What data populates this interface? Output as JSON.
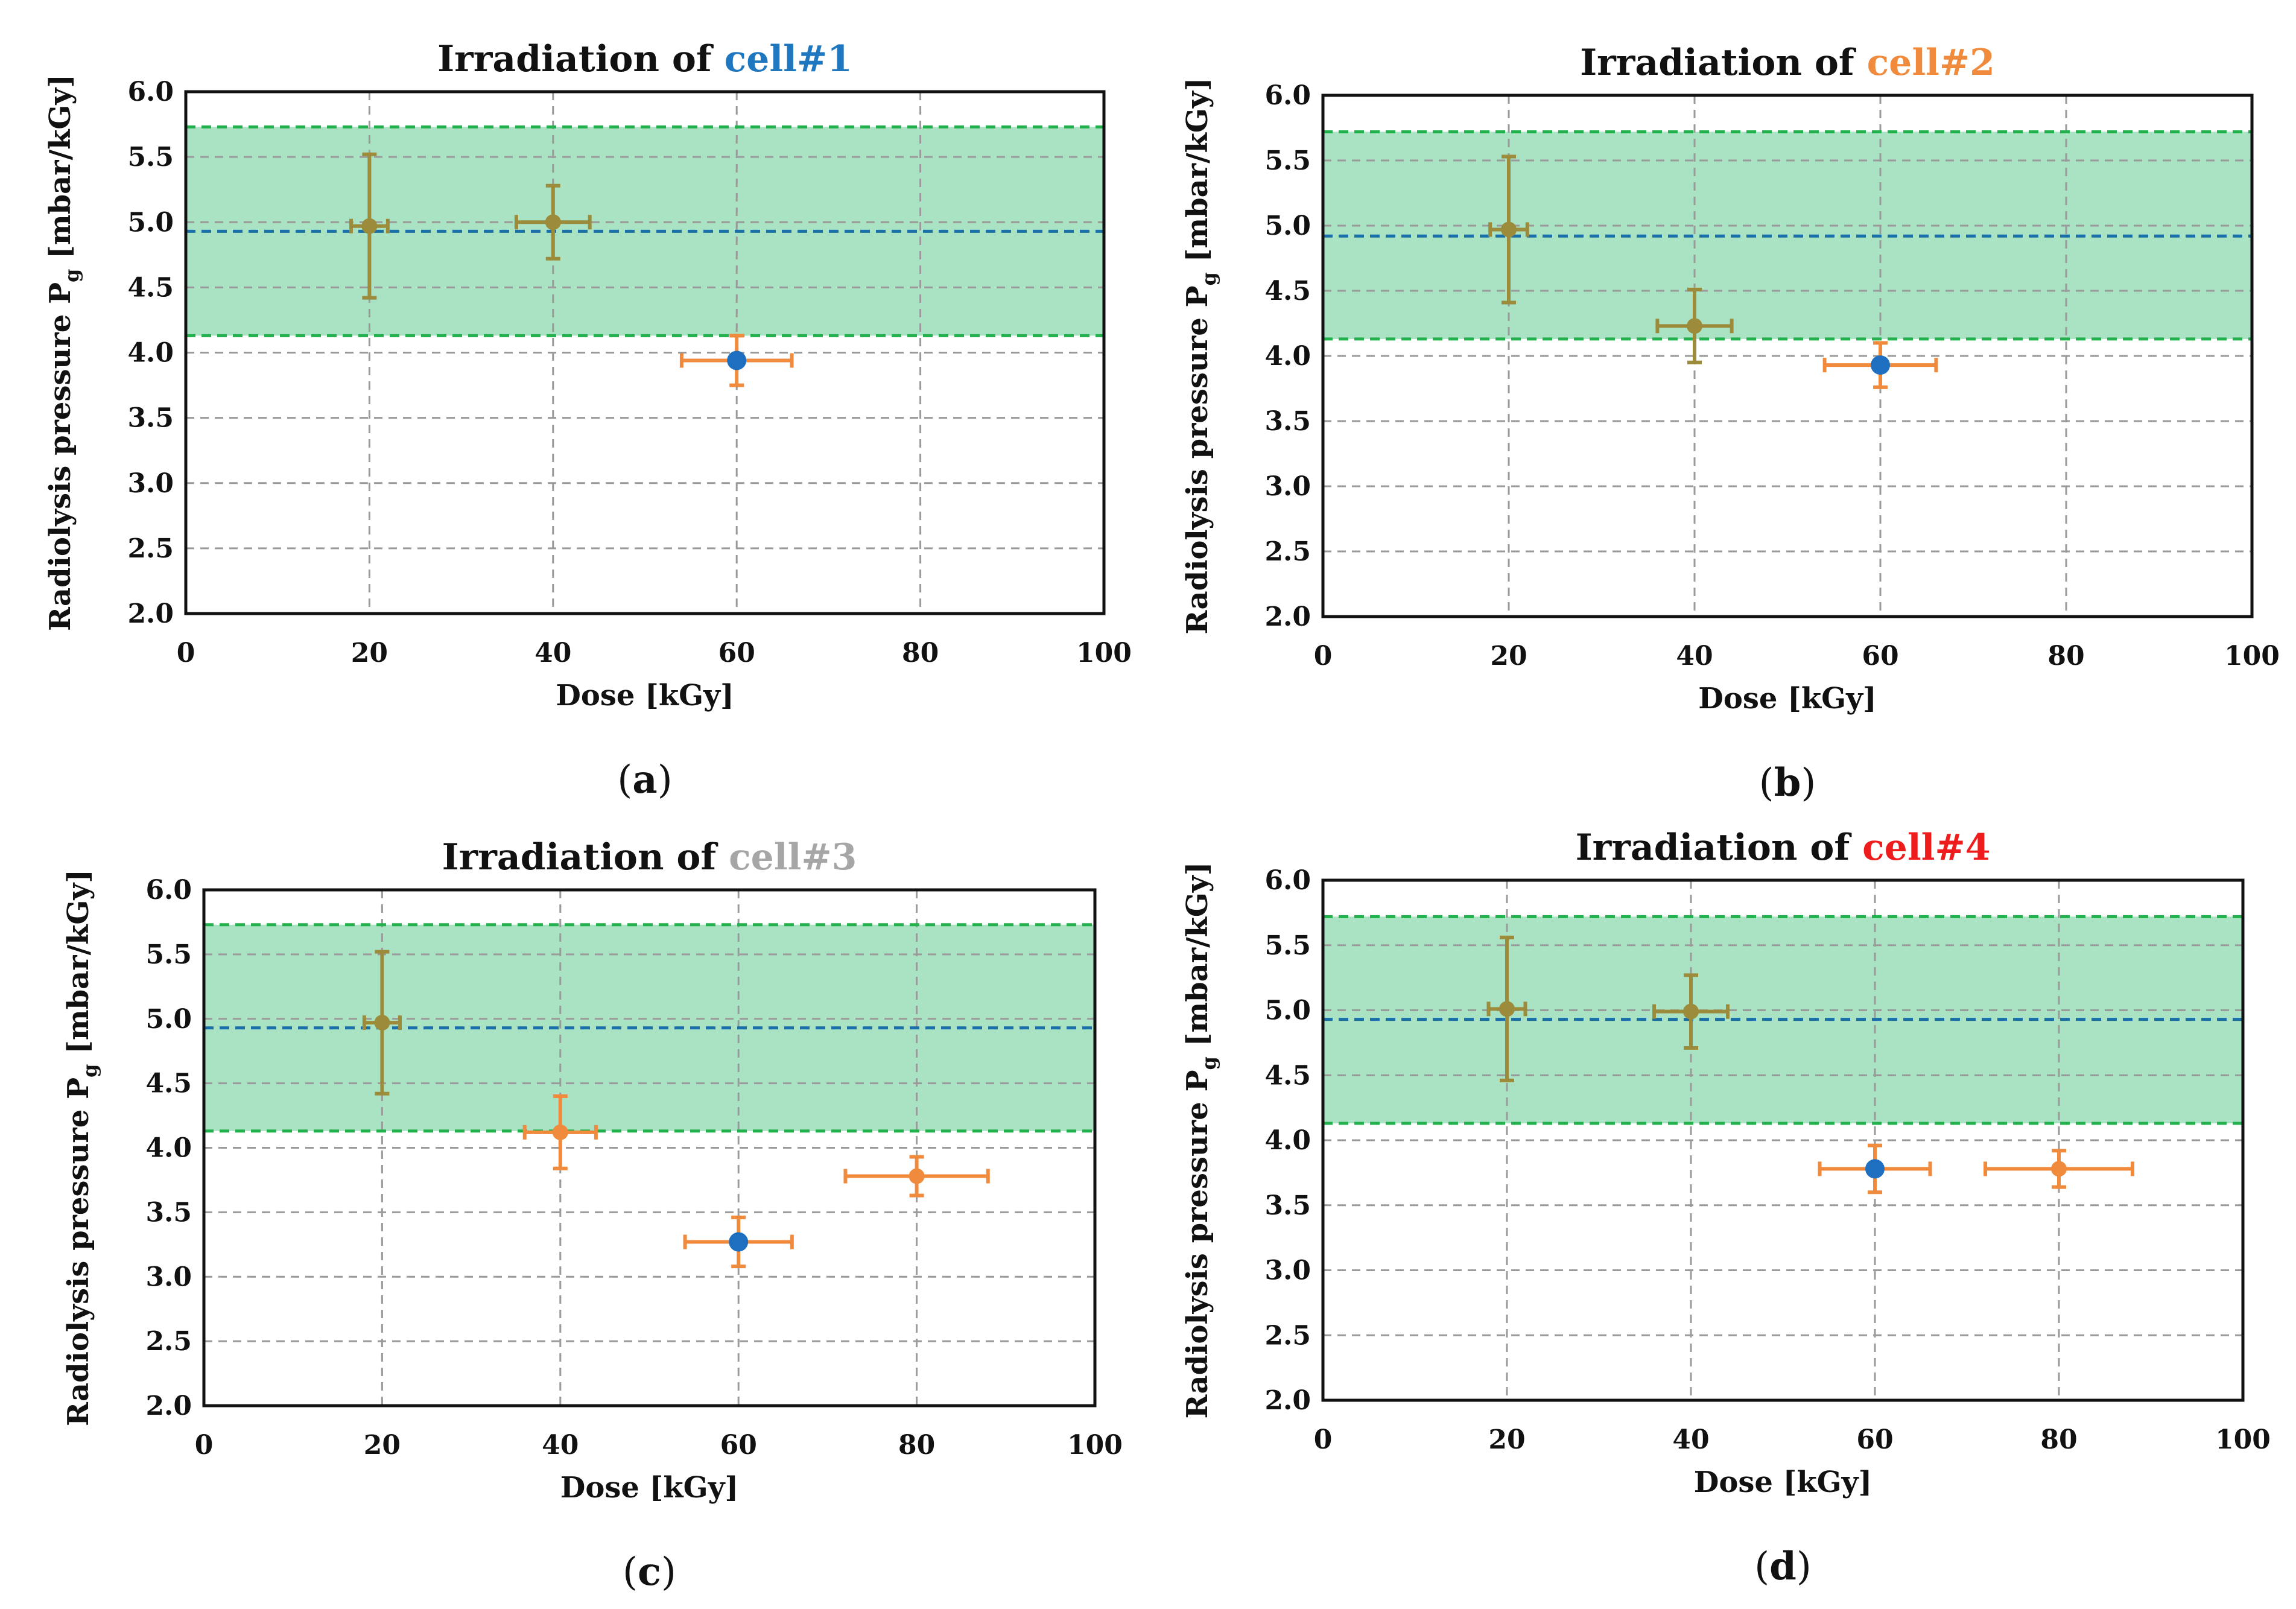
{
  "colors": {
    "band": "#a9e3c4",
    "band_edge": "#22b14c",
    "mean_line": "#1b6fa8",
    "grid": "#9a9a9a",
    "olive": "#9c8b3a",
    "orange": "#f08a3c",
    "blue_marker": "#1e6fc0"
  },
  "chart_data": [
    {
      "type": "scatter",
      "caption": "a",
      "title": "Irradiation of ",
      "title_cell": "cell#1",
      "title_cell_color": "#1f77c0",
      "xlabel": "Dose [kGy]",
      "ylabel": "Radiolysis pressure P",
      "ylabel_sub": "g",
      "ylabel_unit": " [mbar/kGy]",
      "xlim": [
        0,
        100
      ],
      "ylim": [
        2.0,
        6.0
      ],
      "xticks": [
        "0",
        "20",
        "40",
        "60",
        "80",
        "100"
      ],
      "yticks": [
        "2.0",
        "2.5",
        "3.0",
        "3.5",
        "4.0",
        "4.5",
        "5.0",
        "5.5",
        "6.0"
      ],
      "grid": true,
      "band": {
        "low": 4.13,
        "mean": 4.93,
        "high": 5.73
      },
      "points": [
        {
          "x": 20,
          "y": 4.97,
          "xerr": 2,
          "yerr": 0.55,
          "color": "olive",
          "marker": "olive"
        },
        {
          "x": 40,
          "y": 5.0,
          "xerr": 4,
          "yerr": 0.28,
          "color": "olive",
          "marker": "olive"
        },
        {
          "x": 60,
          "y": 3.94,
          "xerr": 6,
          "yerr": 0.19,
          "color": "orange",
          "marker": "blue_marker"
        }
      ]
    },
    {
      "type": "scatter",
      "caption": "b",
      "title": "Irradiation of ",
      "title_cell": "cell#2",
      "title_cell_color": "#f08a3c",
      "xlabel": "Dose [kGy]",
      "ylabel": "Radiolysis pressure P",
      "ylabel_sub": "g",
      "ylabel_unit": " [mbar/kGy]",
      "xlim": [
        0,
        100
      ],
      "ylim": [
        2.0,
        6.0
      ],
      "xticks": [
        "0",
        "20",
        "40",
        "60",
        "80",
        "100"
      ],
      "yticks": [
        "2.0",
        "2.5",
        "3.0",
        "3.5",
        "4.0",
        "4.5",
        "5.0",
        "5.5",
        "6.0"
      ],
      "grid": true,
      "band": {
        "low": 4.13,
        "mean": 4.92,
        "high": 5.72
      },
      "points": [
        {
          "x": 20,
          "y": 4.97,
          "xerr": 2,
          "yerr": 0.56,
          "color": "olive",
          "marker": "olive"
        },
        {
          "x": 40,
          "y": 4.23,
          "xerr": 4,
          "yerr": 0.28,
          "color": "olive",
          "marker": "olive"
        },
        {
          "x": 60,
          "y": 3.93,
          "xerr": 6,
          "yerr": 0.17,
          "color": "orange",
          "marker": "blue_marker"
        }
      ]
    },
    {
      "type": "scatter",
      "caption": "c",
      "title": "Irradiation of ",
      "title_cell": "cell#3",
      "title_cell_color": "#a6a6a6",
      "xlabel": "Dose [kGy]",
      "ylabel": "Radiolysis pressure P",
      "ylabel_sub": "g",
      "ylabel_unit": " [mbar/kGy]",
      "xlim": [
        0,
        100
      ],
      "ylim": [
        2.0,
        6.0
      ],
      "xticks": [
        "0",
        "20",
        "40",
        "60",
        "80",
        "100"
      ],
      "yticks": [
        "2.0",
        "2.5",
        "3.0",
        "3.5",
        "4.0",
        "4.5",
        "5.0",
        "5.5",
        "6.0"
      ],
      "grid": true,
      "band": {
        "low": 4.13,
        "mean": 4.93,
        "high": 5.73
      },
      "points": [
        {
          "x": 20,
          "y": 4.97,
          "xerr": 2,
          "yerr": 0.55,
          "color": "olive",
          "marker": "olive"
        },
        {
          "x": 40,
          "y": 4.12,
          "xerr": 4,
          "yerr": 0.28,
          "color": "orange",
          "marker": "orange"
        },
        {
          "x": 60,
          "y": 3.27,
          "xerr": 6,
          "yerr": 0.19,
          "color": "orange",
          "marker": "blue_marker"
        },
        {
          "x": 80,
          "y": 3.78,
          "xerr": 8,
          "yerr": 0.15,
          "color": "orange",
          "marker": "orange"
        }
      ]
    },
    {
      "type": "scatter",
      "caption": "d",
      "title": "Irradiation of ",
      "title_cell": "cell#4",
      "title_cell_color": "#ee1c1c",
      "xlabel": "Dose [kGy]",
      "ylabel": "Radiolysis pressure P",
      "ylabel_sub": "g",
      "ylabel_unit": " [mbar/kGy]",
      "xlim": [
        0,
        100
      ],
      "ylim": [
        2.0,
        6.0
      ],
      "xticks": [
        "0",
        "20",
        "40",
        "60",
        "80",
        "100"
      ],
      "yticks": [
        "2.0",
        "2.5",
        "3.0",
        "3.5",
        "4.0",
        "4.5",
        "5.0",
        "5.5",
        "6.0"
      ],
      "grid": true,
      "band": {
        "low": 4.13,
        "mean": 4.93,
        "high": 5.72
      },
      "points": [
        {
          "x": 20,
          "y": 5.01,
          "xerr": 2,
          "yerr": 0.55,
          "color": "olive",
          "marker": "olive"
        },
        {
          "x": 40,
          "y": 4.99,
          "xerr": 4,
          "yerr": 0.28,
          "color": "olive",
          "marker": "olive"
        },
        {
          "x": 60,
          "y": 3.78,
          "xerr": 6,
          "yerr": 0.18,
          "color": "orange",
          "marker": "blue_marker"
        },
        {
          "x": 80,
          "y": 3.78,
          "xerr": 8,
          "yerr": 0.14,
          "color": "orange",
          "marker": "orange"
        }
      ]
    }
  ]
}
